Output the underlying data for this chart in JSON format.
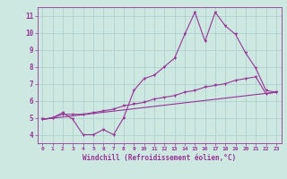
{
  "background_color": "#cce8e0",
  "grid_color": "#aacccc",
  "line_color": "#993399",
  "xlabel": "Windchill (Refroidissement éolien,°C)",
  "xlim": [
    -0.5,
    23.5
  ],
  "ylim": [
    3.5,
    11.5
  ],
  "xticks": [
    0,
    1,
    2,
    3,
    4,
    5,
    6,
    7,
    8,
    9,
    10,
    11,
    12,
    13,
    14,
    15,
    16,
    17,
    18,
    19,
    20,
    21,
    22,
    23
  ],
  "yticks": [
    4,
    5,
    6,
    7,
    8,
    9,
    10,
    11
  ],
  "series1_x": [
    0,
    1,
    2,
    3,
    4,
    5,
    6,
    7,
    8,
    9,
    10,
    11,
    12,
    13,
    14,
    15,
    16,
    17,
    18,
    19,
    20,
    21,
    22,
    23
  ],
  "series1_y": [
    4.9,
    5.0,
    5.3,
    4.9,
    4.0,
    4.0,
    4.3,
    4.0,
    5.0,
    6.6,
    7.3,
    7.5,
    8.0,
    8.5,
    9.9,
    11.2,
    9.5,
    11.2,
    10.4,
    9.9,
    8.8,
    7.9,
    6.6,
    6.5
  ],
  "series2_x": [
    0,
    1,
    2,
    3,
    4,
    5,
    6,
    7,
    8,
    9,
    10,
    11,
    12,
    13,
    14,
    15,
    16,
    17,
    18,
    19,
    20,
    21,
    22,
    23
  ],
  "series2_y": [
    4.9,
    5.0,
    5.2,
    5.2,
    5.2,
    5.3,
    5.4,
    5.5,
    5.7,
    5.8,
    5.9,
    6.1,
    6.2,
    6.3,
    6.5,
    6.6,
    6.8,
    6.9,
    7.0,
    7.2,
    7.3,
    7.4,
    6.4,
    6.5
  ],
  "series3_x": [
    0,
    23
  ],
  "series3_y": [
    4.9,
    6.5
  ],
  "marker_size": 2.5,
  "linewidth": 0.8
}
